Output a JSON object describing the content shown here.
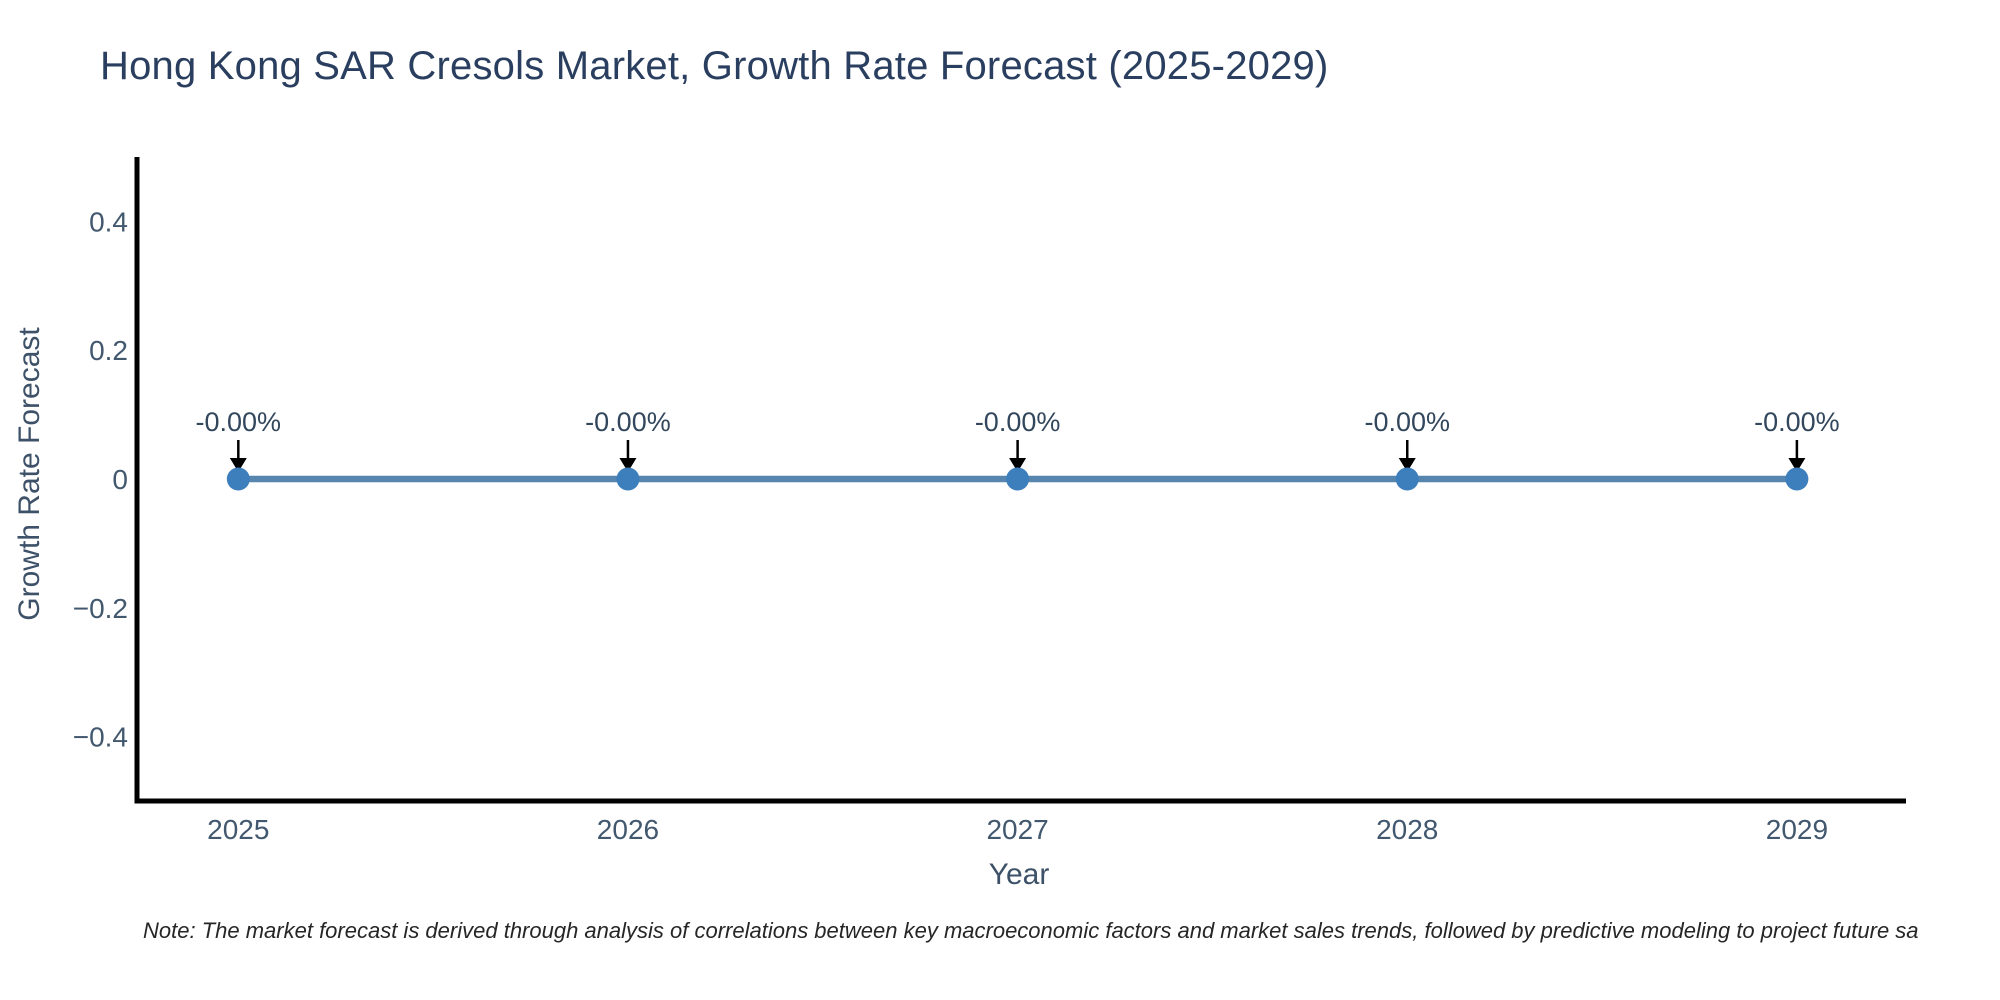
{
  "footnote": "Note: The market forecast is derived through analysis of correlations between key macroeconomic factors and market sales trends, followed by predictive modeling to project future sa",
  "chart_data": {
    "type": "line",
    "title": "Hong Kong SAR Cresols Market, Growth Rate Forecast (2025-2029)",
    "xlabel": "Year",
    "ylabel": "Growth Rate Forecast",
    "x": [
      2025,
      2026,
      2027,
      2028,
      2029
    ],
    "series": [
      {
        "name": "Growth Rate Forecast",
        "values": [
          0,
          0,
          0,
          0,
          0
        ],
        "point_labels": [
          "-0.00%",
          "-0.00%",
          "-0.00%",
          "-0.00%",
          "-0.00%"
        ]
      }
    ],
    "xlim": [
      2024.74,
      2029.28
    ],
    "ylim": [
      -0.5,
      0.5
    ],
    "xticks": [
      {
        "v": 2025,
        "label": "2025"
      },
      {
        "v": 2026,
        "label": "2026"
      },
      {
        "v": 2027,
        "label": "2027"
      },
      {
        "v": 2028,
        "label": "2028"
      },
      {
        "v": 2029,
        "label": "2029"
      }
    ],
    "yticks": [
      {
        "v": 0.4,
        "label": "0.4"
      },
      {
        "v": 0.2,
        "label": "0.2"
      },
      {
        "v": 0,
        "label": "0"
      },
      {
        "v": -0.2,
        "label": "−0.2"
      },
      {
        "v": -0.4,
        "label": "−0.4"
      }
    ],
    "grid": false,
    "legend": false,
    "annotation_style": "down-arrow-to-point",
    "colors": {
      "line": "#5685ad",
      "marker": "#3d7ebc",
      "axis": "#000000",
      "tick_text": "#42586e",
      "title_text": "#2a3f5f",
      "axis_title_text": "#3d5168",
      "annotation_text": "#33475c",
      "arrow": "#000000",
      "note_text": "#262626",
      "background": "#ffffff"
    }
  }
}
